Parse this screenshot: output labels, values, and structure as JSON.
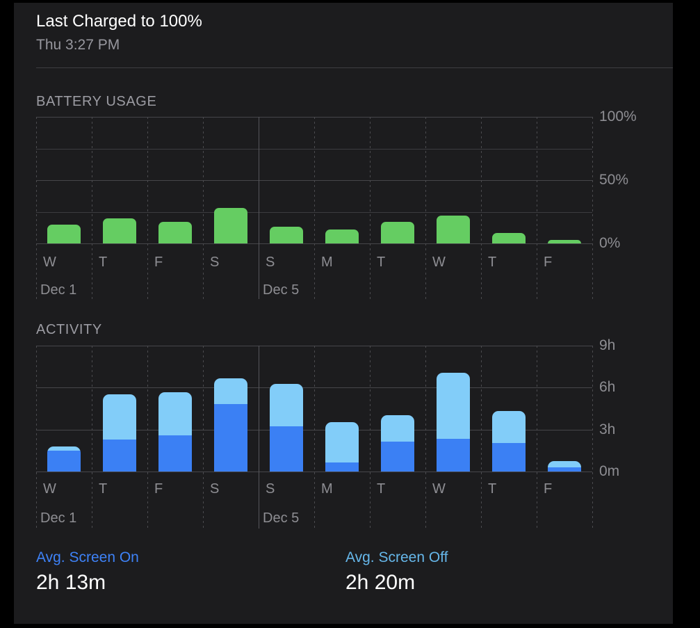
{
  "header": {
    "title": "Last Charged to 100%",
    "subtitle": "Thu 3:27 PM"
  },
  "stats": {
    "screen_on_label": "Avg. Screen On",
    "screen_on_value": "2h 13m",
    "screen_off_label": "Avg. Screen Off",
    "screen_off_value": "2h 20m"
  },
  "colors": {
    "background": "#000000",
    "card": "#1c1c1e",
    "battery_green": "#65cd62",
    "screen_on_blue": "#3b80f4",
    "screen_off_blue": "#82cdf9",
    "screen_on_label_blue": "#3e82f7",
    "screen_off_label_blue": "#66b7ea",
    "grid_gray": "#47474b",
    "text_secondary": "#8e8e93"
  },
  "chart_data": [
    {
      "id": "battery",
      "type": "bar",
      "title": "BATTERY USAGE",
      "categories": [
        "W",
        "T",
        "F",
        "S",
        "S",
        "M",
        "T",
        "W",
        "T",
        "F"
      ],
      "values": [
        15,
        20,
        17,
        28,
        13,
        11,
        17,
        22,
        8,
        3
      ],
      "unit": "percent",
      "ylim": [
        0,
        100
      ],
      "gridline_values": [
        100,
        75,
        50,
        25,
        0
      ],
      "ytick_values": [
        100,
        50,
        0
      ],
      "ytick_labels": [
        "100%",
        "50%",
        "0%"
      ],
      "date_markers": [
        {
          "index": 0,
          "label": "Dec 1"
        },
        {
          "index": 4,
          "label": "Dec 5"
        }
      ],
      "solid_divider_index": 4,
      "bar_color": "#65cd62",
      "grid": true,
      "legend_position": "none",
      "xlabel": "",
      "ylabel": ""
    },
    {
      "id": "activity",
      "type": "bar",
      "stacked": true,
      "title": "ACTIVITY",
      "categories": [
        "W",
        "T",
        "F",
        "S",
        "S",
        "M",
        "T",
        "W",
        "T",
        "F"
      ],
      "series": [
        {
          "name": "Screen On",
          "color": "#3b80f4",
          "values": [
            1.5,
            2.3,
            2.6,
            4.8,
            3.25,
            0.65,
            2.15,
            2.35,
            2.05,
            0.3
          ]
        },
        {
          "name": "Screen Off",
          "color": "#82cdf9",
          "values": [
            0.3,
            3.2,
            3.05,
            1.85,
            3.0,
            2.9,
            1.9,
            4.7,
            2.3,
            0.45
          ]
        }
      ],
      "unit": "hours",
      "ylim": [
        0,
        9
      ],
      "gridline_values": [
        9,
        6,
        3,
        0
      ],
      "ytick_values": [
        9,
        6,
        3,
        0
      ],
      "ytick_labels": [
        "9h",
        "6h",
        "3h",
        "0m"
      ],
      "date_markers": [
        {
          "index": 0,
          "label": "Dec 1"
        },
        {
          "index": 4,
          "label": "Dec 5"
        }
      ],
      "solid_divider_index": 4,
      "grid": true,
      "legend_position": "none",
      "xlabel": "",
      "ylabel": ""
    }
  ]
}
